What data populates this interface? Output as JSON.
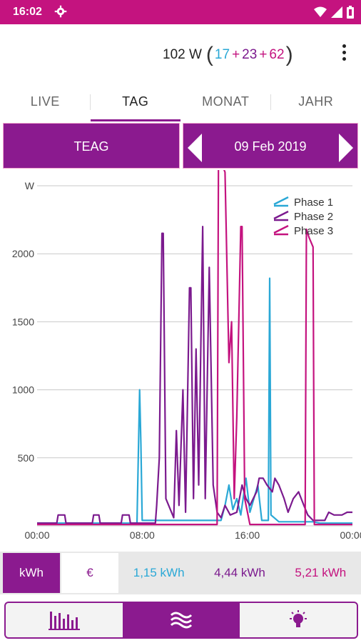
{
  "status": {
    "time": "16:02"
  },
  "header": {
    "total": "102 W",
    "phase1": "17",
    "phase2": "23",
    "phase3": "62",
    "plus": "+"
  },
  "tabs": [
    {
      "label": "LIVE"
    },
    {
      "label": "TAG"
    },
    {
      "label": "MONAT"
    },
    {
      "label": "JAHR"
    }
  ],
  "selector": {
    "provider": "TEAG",
    "date": "09 Feb 2019"
  },
  "energy": {
    "unit_kwh": "kWh",
    "unit_eur": "€",
    "phase1": "1,15 kWh",
    "phase2": "4,44 kWh",
    "phase3": "5,21 kWh"
  },
  "colors": {
    "phase1": "#2aa8d6",
    "phase2": "#7b1a8e",
    "phase3": "#c4137f",
    "accent": "#8b1a8f"
  },
  "icons": {
    "nav_left": "bar-chart-icon",
    "nav_center": "waves-icon",
    "nav_right": "lightbulb-icon"
  },
  "chart_data": {
    "type": "line",
    "ylabel": "W",
    "xticks": [
      "00:00",
      "08:00",
      "16:00",
      "00:00"
    ],
    "yticks": [
      "500",
      "1000",
      "1500",
      "2000"
    ],
    "xlim": [
      0,
      24
    ],
    "ylim": [
      0,
      2500
    ],
    "grid": true,
    "legend_position": "top-right",
    "series": [
      {
        "name": "Phase 1",
        "color": "#2aa8d6",
        "points": [
          [
            0,
            20
          ],
          [
            7.6,
            20
          ],
          [
            7.8,
            1000
          ],
          [
            7.9,
            600
          ],
          [
            8.0,
            40
          ],
          [
            14.0,
            40
          ],
          [
            14.3,
            150
          ],
          [
            14.6,
            300
          ],
          [
            14.9,
            120
          ],
          [
            15.2,
            200
          ],
          [
            15.5,
            80
          ],
          [
            15.9,
            350
          ],
          [
            16.2,
            100
          ],
          [
            16.8,
            300
          ],
          [
            17.1,
            40
          ],
          [
            17.6,
            40
          ],
          [
            17.7,
            1820
          ],
          [
            17.8,
            80
          ],
          [
            18.4,
            30
          ],
          [
            21.0,
            30
          ],
          [
            21.5,
            20
          ],
          [
            24,
            20
          ]
        ]
      },
      {
        "name": "Phase 2",
        "color": "#7b1a8e",
        "points": [
          [
            0,
            20
          ],
          [
            1.5,
            20
          ],
          [
            1.6,
            80
          ],
          [
            2.1,
            80
          ],
          [
            2.2,
            20
          ],
          [
            4.2,
            20
          ],
          [
            4.3,
            80
          ],
          [
            4.7,
            80
          ],
          [
            4.8,
            20
          ],
          [
            6.4,
            20
          ],
          [
            6.5,
            80
          ],
          [
            7.0,
            80
          ],
          [
            7.1,
            20
          ],
          [
            9.0,
            20
          ],
          [
            9.1,
            150
          ],
          [
            9.3,
            500
          ],
          [
            9.5,
            2150
          ],
          [
            9.6,
            2150
          ],
          [
            9.8,
            200
          ],
          [
            10.4,
            60
          ],
          [
            10.6,
            700
          ],
          [
            10.8,
            150
          ],
          [
            11.1,
            1000
          ],
          [
            11.3,
            100
          ],
          [
            11.6,
            1750
          ],
          [
            11.7,
            1750
          ],
          [
            11.9,
            200
          ],
          [
            12.1,
            1300
          ],
          [
            12.3,
            300
          ],
          [
            12.6,
            2200
          ],
          [
            12.8,
            200
          ],
          [
            13.1,
            1900
          ],
          [
            13.4,
            300
          ],
          [
            13.7,
            100
          ],
          [
            14.0,
            60
          ],
          [
            14.3,
            150
          ],
          [
            14.7,
            80
          ],
          [
            15.2,
            100
          ],
          [
            15.6,
            300
          ],
          [
            15.9,
            200
          ],
          [
            16.2,
            150
          ],
          [
            16.7,
            250
          ],
          [
            16.9,
            350
          ],
          [
            17.2,
            350
          ],
          [
            17.5,
            300
          ],
          [
            17.9,
            250
          ],
          [
            18.1,
            350
          ],
          [
            18.4,
            300
          ],
          [
            18.8,
            200
          ],
          [
            19.1,
            100
          ],
          [
            19.5,
            200
          ],
          [
            19.9,
            250
          ],
          [
            20.3,
            150
          ],
          [
            20.6,
            80
          ],
          [
            21.0,
            40
          ],
          [
            21.9,
            40
          ],
          [
            22.2,
            100
          ],
          [
            22.6,
            80
          ],
          [
            23.2,
            80
          ],
          [
            23.6,
            100
          ],
          [
            24,
            100
          ]
        ]
      },
      {
        "name": "Phase 3",
        "color": "#c4137f",
        "points": [
          [
            0,
            10
          ],
          [
            13.7,
            10
          ],
          [
            13.8,
            2650
          ],
          [
            14.1,
            2650
          ],
          [
            14.3,
            2600
          ],
          [
            14.6,
            1200
          ],
          [
            14.8,
            1500
          ],
          [
            15.0,
            200
          ],
          [
            15.2,
            800
          ],
          [
            15.5,
            2200
          ],
          [
            15.6,
            2200
          ],
          [
            15.8,
            200
          ],
          [
            16.2,
            10
          ],
          [
            20.4,
            10
          ],
          [
            20.5,
            2180
          ],
          [
            20.7,
            2120
          ],
          [
            21.0,
            2050
          ],
          [
            21.1,
            10
          ],
          [
            24,
            10
          ]
        ]
      }
    ]
  }
}
